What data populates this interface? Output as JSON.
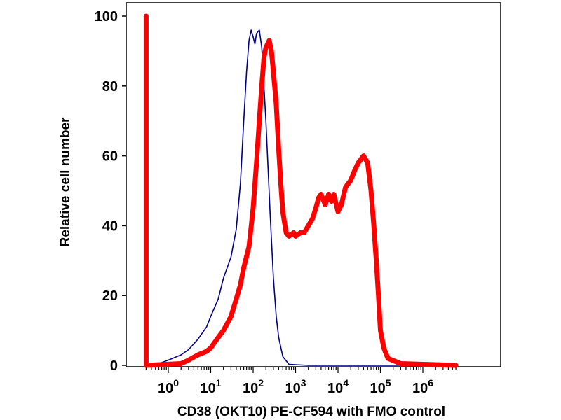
{
  "chart_data": {
    "type": "line",
    "xlabel": "CD38 (OKT10) PE-CF594 with FMO control",
    "ylabel": "Relative cell number",
    "x_scale": "log",
    "x_tick_labels": [
      {
        "base": "10",
        "exp": "0"
      },
      {
        "base": "10",
        "exp": "1"
      },
      {
        "base": "10",
        "exp": "2"
      },
      {
        "base": "10",
        "exp": "3"
      },
      {
        "base": "10",
        "exp": "4"
      },
      {
        "base": "10",
        "exp": "5"
      },
      {
        "base": "10",
        "exp": "6"
      }
    ],
    "x_tick_values": [
      1,
      10,
      100,
      1000,
      10000,
      100000,
      1000000
    ],
    "y_ticks": [
      "0",
      "20",
      "40",
      "60",
      "80",
      "100"
    ],
    "y_tick_values": [
      0,
      20,
      40,
      60,
      80,
      100
    ],
    "ylim": [
      0,
      100
    ],
    "xlim": [
      0.3,
      6000000
    ],
    "grid": false,
    "series": [
      {
        "color": "#00008b",
        "stroke": "thin",
        "points": [
          [
            0.3,
            100
          ],
          [
            0.3,
            0
          ],
          [
            0.6,
            0.5
          ],
          [
            1,
            1.5
          ],
          [
            2,
            3
          ],
          [
            3,
            4.5
          ],
          [
            5,
            7.5
          ],
          [
            8,
            11
          ],
          [
            10,
            14
          ],
          [
            15,
            19
          ],
          [
            20,
            25
          ],
          [
            30,
            31
          ],
          [
            40,
            39
          ],
          [
            50,
            52
          ],
          [
            60,
            70
          ],
          [
            70,
            84
          ],
          [
            80,
            93
          ],
          [
            90,
            96
          ],
          [
            100,
            94
          ],
          [
            110,
            92
          ],
          [
            120,
            95
          ],
          [
            140,
            96
          ],
          [
            160,
            91
          ],
          [
            200,
            70
          ],
          [
            250,
            44
          ],
          [
            300,
            25
          ],
          [
            350,
            14
          ],
          [
            400,
            8
          ],
          [
            500,
            2.5
          ],
          [
            700,
            0.3
          ],
          [
            2000,
            0
          ],
          [
            6000000,
            0
          ]
        ]
      },
      {
        "color": "#ff0000",
        "stroke": "thick",
        "points": [
          [
            0.3,
            100
          ],
          [
            0.3,
            0
          ],
          [
            2,
            0.5
          ],
          [
            3,
            1.5
          ],
          [
            5,
            3
          ],
          [
            8,
            4
          ],
          [
            10,
            5
          ],
          [
            15,
            8
          ],
          [
            20,
            10
          ],
          [
            30,
            14
          ],
          [
            40,
            19
          ],
          [
            50,
            23
          ],
          [
            60,
            28
          ],
          [
            80,
            34
          ],
          [
            100,
            45
          ],
          [
            120,
            58
          ],
          [
            140,
            70
          ],
          [
            160,
            80
          ],
          [
            180,
            88
          ],
          [
            200,
            91
          ],
          [
            240,
            93
          ],
          [
            270,
            90
          ],
          [
            300,
            84
          ],
          [
            350,
            75
          ],
          [
            400,
            62
          ],
          [
            450,
            52
          ],
          [
            500,
            44
          ],
          [
            600,
            38
          ],
          [
            700,
            37
          ],
          [
            900,
            38
          ],
          [
            1000,
            37
          ],
          [
            1300,
            38
          ],
          [
            1600,
            38
          ],
          [
            2000,
            40
          ],
          [
            2500,
            42
          ],
          [
            3000,
            45
          ],
          [
            3500,
            48
          ],
          [
            4000,
            49
          ],
          [
            5000,
            46
          ],
          [
            6000,
            49
          ],
          [
            7000,
            47
          ],
          [
            8000,
            49
          ],
          [
            10000,
            44
          ],
          [
            12000,
            46
          ],
          [
            15000,
            51
          ],
          [
            20000,
            53
          ],
          [
            25000,
            56
          ],
          [
            30000,
            58
          ],
          [
            40000,
            60
          ],
          [
            50000,
            58
          ],
          [
            60000,
            50
          ],
          [
            70000,
            40
          ],
          [
            80000,
            30
          ],
          [
            90000,
            20
          ],
          [
            100000,
            10
          ],
          [
            120000,
            5
          ],
          [
            150000,
            2
          ],
          [
            300000,
            0.5
          ],
          [
            6000000,
            0
          ]
        ]
      }
    ]
  }
}
